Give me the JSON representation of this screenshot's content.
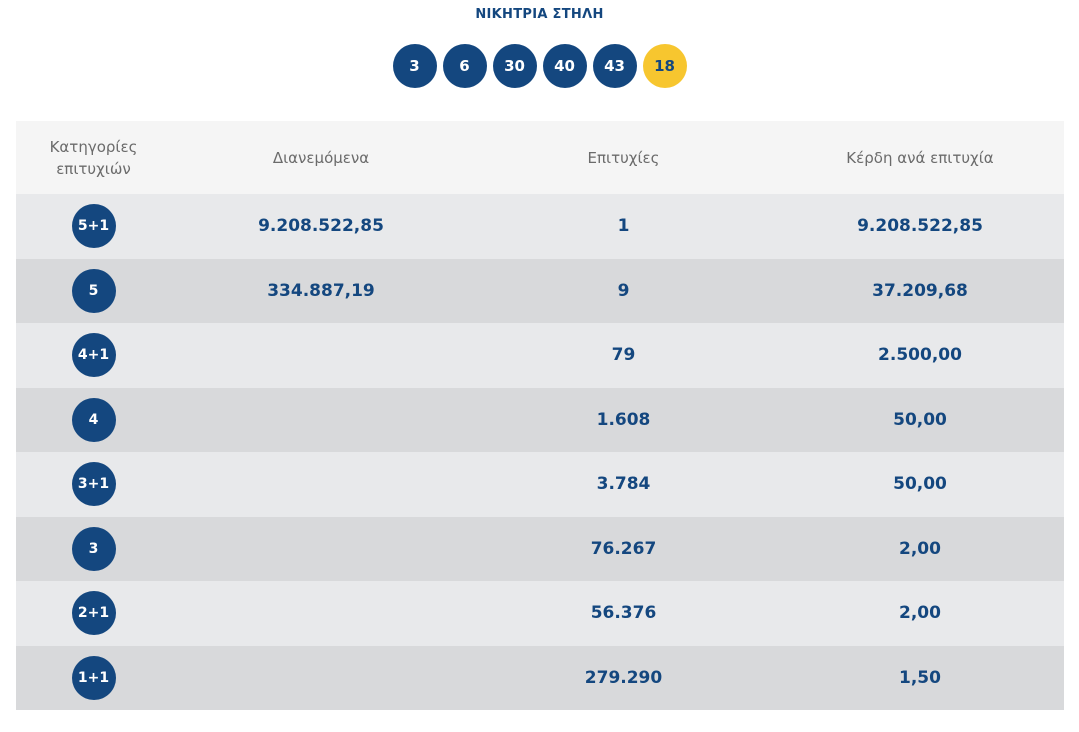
{
  "header": {
    "title": "ΝΙΚΗΤΡΙΑ ΣΤΗΛΗ",
    "numbers": [
      "3",
      "6",
      "30",
      "40",
      "43"
    ],
    "bonus": "18"
  },
  "table": {
    "columns": [
      "Κατηγορίες επιτυχιών",
      "Διανεμόμενα",
      "Επιτυχίες",
      "Κέρδη ανά επιτυχία"
    ],
    "rows": [
      {
        "category": "5+1",
        "distributed": "9.208.522,85",
        "winners": "1",
        "prize": "9.208.522,85"
      },
      {
        "category": "5",
        "distributed": "334.887,19",
        "winners": "9",
        "prize": "37.209,68"
      },
      {
        "category": "4+1",
        "distributed": "",
        "winners": "79",
        "prize": "2.500,00"
      },
      {
        "category": "4",
        "distributed": "",
        "winners": "1.608",
        "prize": "50,00"
      },
      {
        "category": "3+1",
        "distributed": "",
        "winners": "3.784",
        "prize": "50,00"
      },
      {
        "category": "3",
        "distributed": "",
        "winners": "76.267",
        "prize": "2,00"
      },
      {
        "category": "2+1",
        "distributed": "",
        "winners": "56.376",
        "prize": "2,00"
      },
      {
        "category": "1+1",
        "distributed": "",
        "winners": "279.290",
        "prize": "1,50"
      }
    ]
  },
  "colors": {
    "accent_blue": "#14477f",
    "bonus_yellow": "#f7c62f",
    "row_light": "#e8e9eb",
    "row_dark": "#d8d9db"
  }
}
